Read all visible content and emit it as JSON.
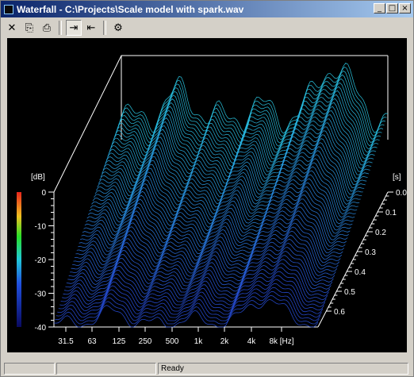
{
  "window": {
    "title": "Waterfall - C:\\Projects\\Scale model with spark.wav",
    "buttons": {
      "minimize": "_",
      "maximize": "□",
      "close": "×"
    }
  },
  "toolbar": {
    "items": [
      {
        "icon": "close-icon",
        "glyph": "✕"
      },
      {
        "icon": "copy-icon",
        "glyph": "⎘"
      },
      {
        "icon": "print-icon",
        "glyph": "⎙"
      },
      {
        "icon": "zoom-fit-icon",
        "glyph": "⇥"
      },
      {
        "icon": "zoom-out-icon",
        "glyph": "⇤"
      },
      {
        "icon": "properties-icon",
        "glyph": "⚙"
      }
    ]
  },
  "plot": {
    "y_unit": "[dB]",
    "y_ticks": [
      "0",
      "-10",
      "-20",
      "-30",
      "-40"
    ],
    "x_ticks": [
      "31.5",
      "63",
      "125",
      "250",
      "500",
      "1k",
      "2k",
      "4k",
      "8k [Hz]"
    ],
    "z_unit": "[s]",
    "z_ticks": [
      "0.0",
      "0.1",
      "0.2",
      "0.3",
      "0.4",
      "0.5",
      "0.6"
    ],
    "colors": {
      "background": "#000000",
      "high": "#e8241c",
      "mid": "#28e028",
      "low": "#1a1a8c"
    }
  },
  "statusbar": {
    "text": "Ready"
  }
}
